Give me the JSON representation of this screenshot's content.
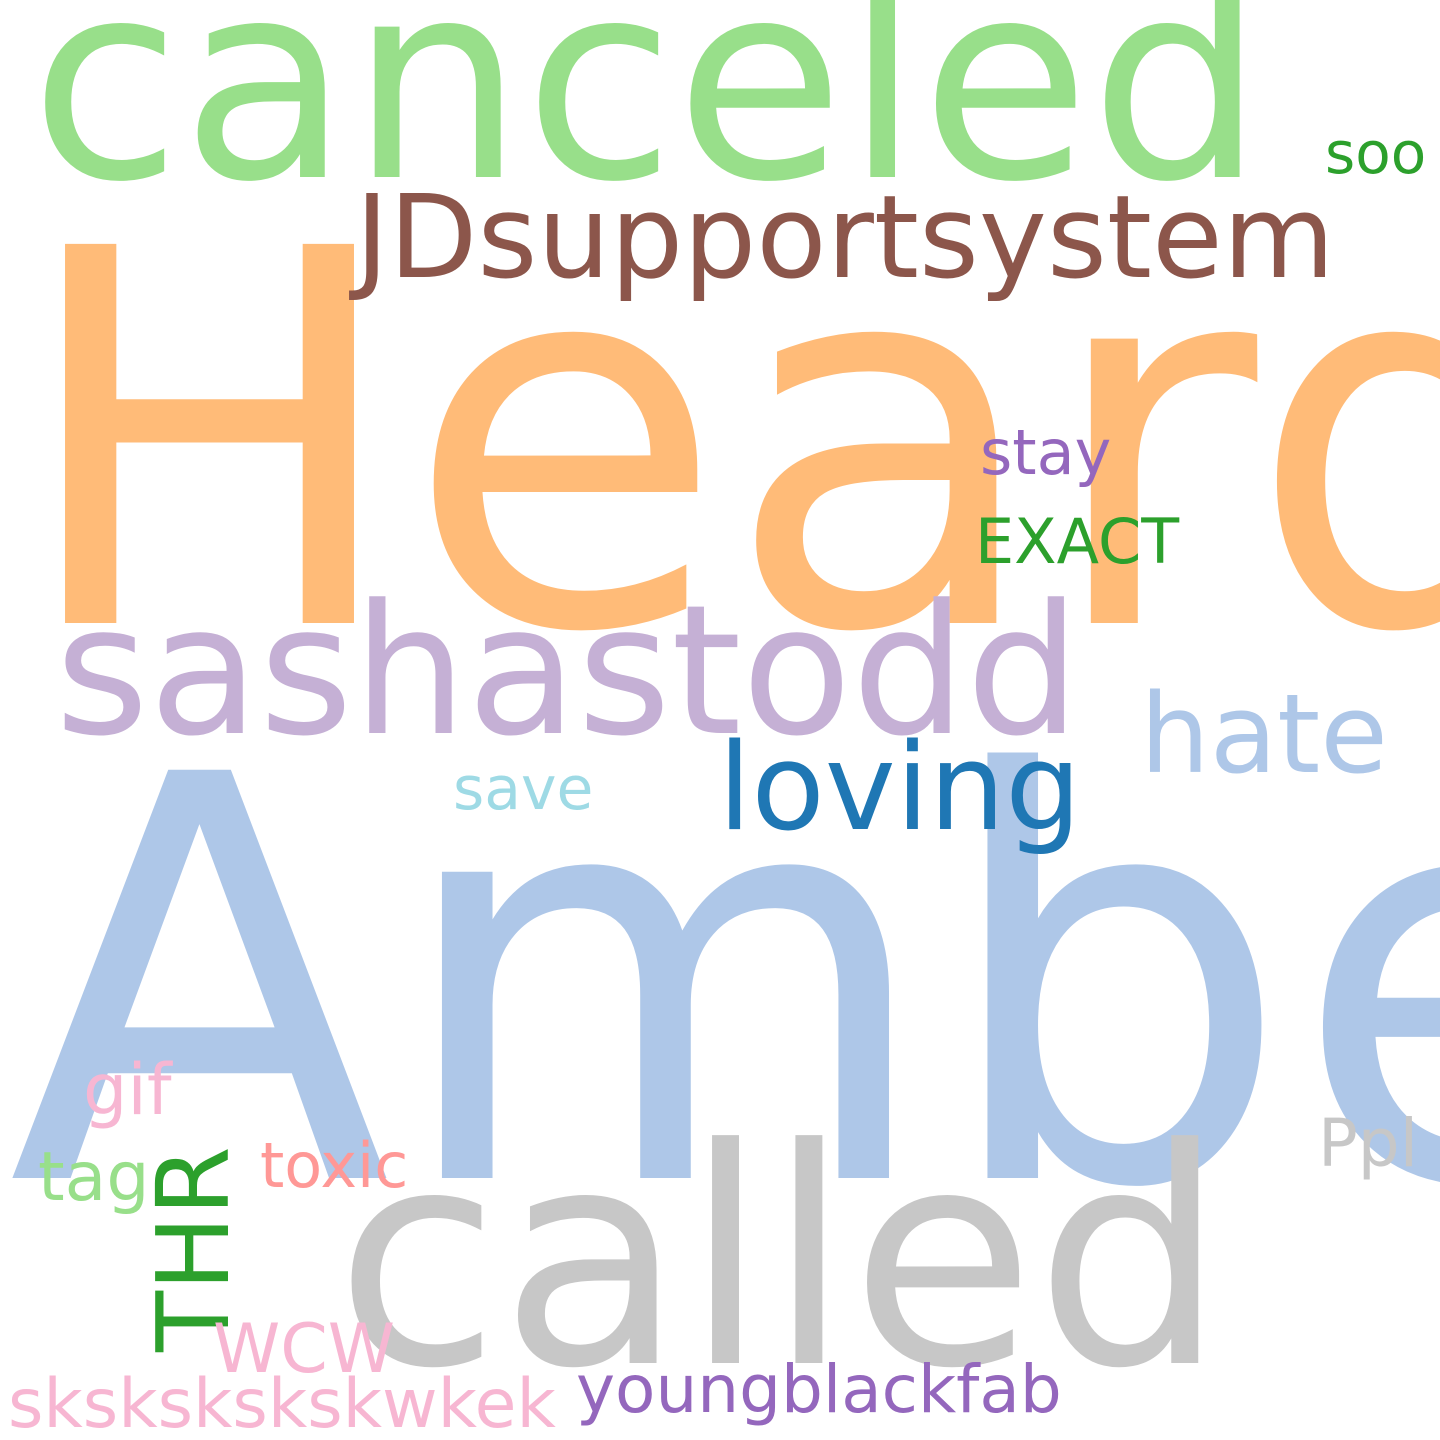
{
  "words": [
    {
      "text": "Heard",
      "color": "#ffbb78"
    },
    {
      "text": "Amber",
      "color": "#aec7e8"
    },
    {
      "text": "canceled",
      "color": "#98df8a"
    },
    {
      "text": "called",
      "color": "#c7c7c7"
    },
    {
      "text": "sashastodd",
      "color": "#c5b0d5"
    },
    {
      "text": "JDsupportsystem",
      "color": "#8c564b"
    },
    {
      "text": "loving",
      "color": "#1f77b4"
    },
    {
      "text": "hate",
      "color": "#aec7e8"
    },
    {
      "text": "THR",
      "color": "#2ca02c"
    },
    {
      "text": "stay",
      "color": "#9467bd"
    },
    {
      "text": "EXACT",
      "color": "#2ca02c"
    },
    {
      "text": "soo",
      "color": "#2ca02c"
    },
    {
      "text": "save",
      "color": "#9edae5"
    },
    {
      "text": "gif",
      "color": "#f7b6d2"
    },
    {
      "text": "tag",
      "color": "#98df8a"
    },
    {
      "text": "toxic",
      "color": "#ff9896"
    },
    {
      "text": "Ppl",
      "color": "#c7c7c7"
    },
    {
      "text": "WCW",
      "color": "#f7b6d2"
    },
    {
      "text": "skskskskskwkek",
      "color": "#f7b6d2"
    },
    {
      "text": "youngblackfab",
      "color": "#9467bd"
    }
  ]
}
